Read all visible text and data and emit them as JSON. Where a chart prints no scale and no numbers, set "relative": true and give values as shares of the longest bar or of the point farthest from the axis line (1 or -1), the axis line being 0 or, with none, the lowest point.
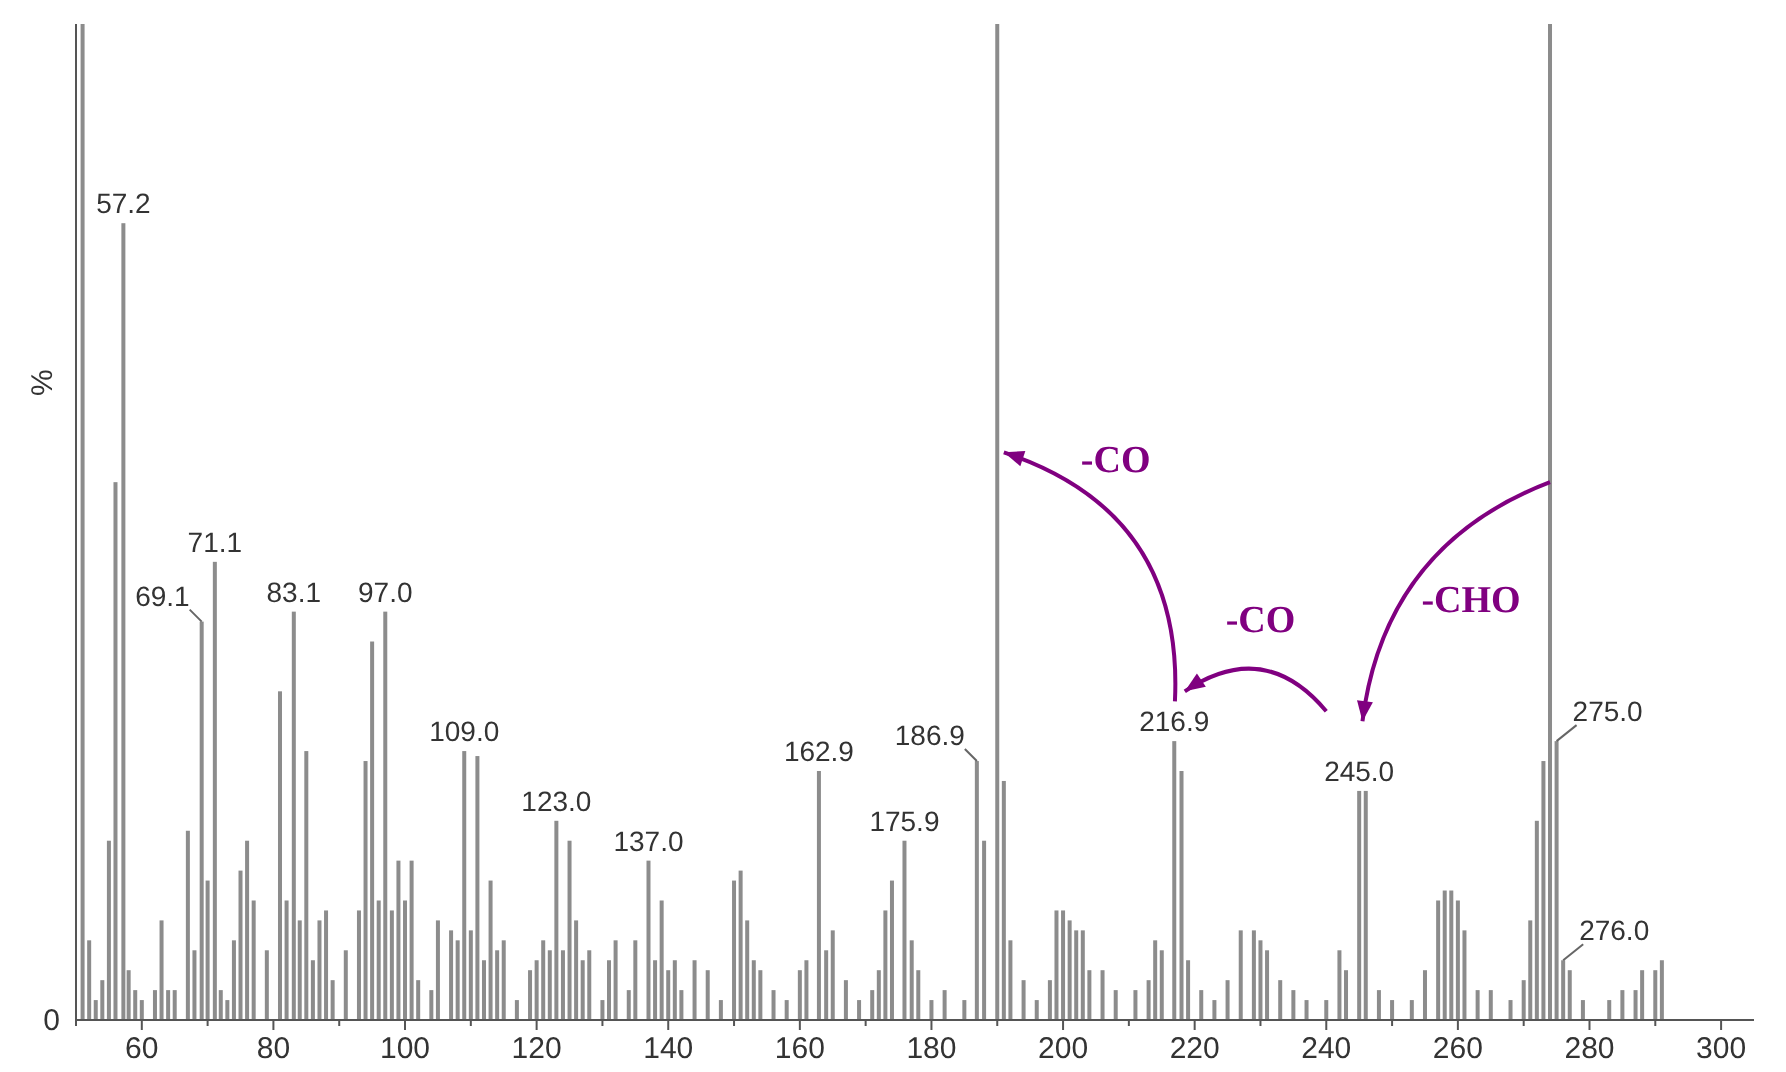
{
  "chart_data": {
    "type": "bar",
    "relative": true,
    "ylabel": "%",
    "color": "#8c8c8c",
    "xlim": [
      50,
      305
    ],
    "xticks": [
      {
        "value": 50,
        "label": null
      },
      60,
      {
        "value": 70,
        "label": null
      },
      80,
      {
        "value": 90,
        "label": null
      },
      100,
      {
        "value": 110,
        "label": null
      },
      120,
      {
        "value": 130,
        "label": null
      },
      140,
      {
        "value": 150,
        "label": null
      },
      160,
      {
        "value": 170,
        "label": null
      },
      180,
      {
        "value": 190,
        "label": null
      },
      200,
      {
        "value": 210,
        "label": null
      },
      220,
      {
        "value": 230,
        "label": null
      },
      240,
      {
        "value": 250,
        "label": null
      },
      260,
      {
        "value": 270,
        "label": null
      },
      280,
      {
        "value": 290,
        "label": null
      },
      300
    ],
    "x": [
      51,
      52,
      53,
      54,
      55,
      56,
      57.2,
      58,
      59,
      60,
      62,
      63,
      64,
      65,
      67,
      68,
      69.1,
      70,
      71.1,
      72,
      73,
      74,
      75,
      76,
      77,
      79,
      81,
      82,
      83.1,
      84,
      85,
      86,
      87,
      88,
      89,
      91,
      93,
      94,
      95,
      96,
      97.0,
      98,
      99,
      100,
      101,
      102,
      104,
      105,
      107,
      108,
      109.0,
      110,
      111,
      112,
      113,
      114,
      115,
      117,
      119,
      120,
      121,
      122,
      123.0,
      124,
      125,
      126,
      127,
      128,
      130,
      131,
      132,
      134,
      135,
      137.0,
      138,
      139,
      140,
      141,
      142,
      144,
      146,
      148,
      150,
      151,
      152,
      153,
      154,
      156,
      158,
      160,
      161,
      162.9,
      164,
      165,
      167,
      169,
      171,
      172,
      173,
      174,
      175.9,
      177,
      178,
      180,
      182,
      185,
      186.9,
      188,
      190,
      191,
      192,
      194,
      196,
      198,
      199,
      200,
      201,
      202,
      203,
      204,
      206,
      208,
      211,
      213,
      214,
      215,
      216.9,
      218,
      219,
      221,
      223,
      225,
      227,
      229,
      230,
      231,
      233,
      235,
      237,
      240,
      242,
      243,
      245.0,
      246,
      248,
      250,
      253,
      255,
      257,
      258,
      259,
      260,
      261,
      263,
      265,
      268,
      270,
      271,
      272,
      273,
      274,
      275.0,
      276.0,
      277,
      279,
      283,
      285,
      287,
      288,
      290,
      291
    ],
    "values": [
      1.0,
      0.08,
      0.02,
      0.04,
      0.18,
      0.54,
      0.8,
      0.05,
      0.03,
      0.02,
      0.03,
      0.1,
      0.03,
      0.03,
      0.19,
      0.07,
      0.4,
      0.14,
      0.46,
      0.03,
      0.02,
      0.08,
      0.15,
      0.18,
      0.12,
      0.07,
      0.33,
      0.12,
      0.41,
      0.1,
      0.27,
      0.06,
      0.1,
      0.11,
      0.04,
      0.07,
      0.11,
      0.26,
      0.38,
      0.12,
      0.41,
      0.11,
      0.16,
      0.12,
      0.16,
      0.04,
      0.03,
      0.1,
      0.09,
      0.08,
      0.27,
      0.09,
      0.265,
      0.06,
      0.14,
      0.07,
      0.08,
      0.02,
      0.05,
      0.06,
      0.08,
      0.07,
      0.2,
      0.07,
      0.18,
      0.1,
      0.06,
      0.07,
      0.02,
      0.06,
      0.08,
      0.03,
      0.08,
      0.16,
      0.06,
      0.12,
      0.05,
      0.06,
      0.03,
      0.06,
      0.05,
      0.02,
      0.14,
      0.15,
      0.1,
      0.06,
      0.05,
      0.03,
      0.02,
      0.05,
      0.06,
      0.25,
      0.07,
      0.09,
      0.04,
      0.02,
      0.03,
      0.05,
      0.11,
      0.14,
      0.18,
      0.08,
      0.05,
      0.02,
      0.03,
      0.02,
      0.26,
      0.18,
      1.0,
      0.24,
      0.08,
      0.04,
      0.02,
      0.04,
      0.11,
      0.11,
      0.1,
      0.09,
      0.09,
      0.05,
      0.05,
      0.03,
      0.03,
      0.04,
      0.08,
      0.07,
      0.28,
      0.25,
      0.06,
      0.03,
      0.02,
      0.04,
      0.09,
      0.09,
      0.08,
      0.07,
      0.04,
      0.03,
      0.02,
      0.02,
      0.07,
      0.05,
      0.23,
      0.23,
      0.03,
      0.02,
      0.02,
      0.05,
      0.12,
      0.13,
      0.13,
      0.12,
      0.09,
      0.03,
      0.03,
      0.02,
      0.04,
      0.1,
      0.2,
      0.26,
      1.0,
      0.28,
      0.06,
      0.05,
      0.02,
      0.02,
      0.03,
      0.03,
      0.05,
      0.05,
      0.06
    ],
    "annotations": [
      {
        "text": "0",
        "x": 50,
        "y": 0
      },
      {
        "text": "57.2",
        "x": 57.2,
        "y": 0.8
      },
      {
        "text": "69.1",
        "x": 69.1,
        "y": 0.4
      },
      {
        "text": "71.1",
        "x": 71.1,
        "y": 0.46
      },
      {
        "text": "83.1",
        "x": 83.1,
        "y": 0.41
      },
      {
        "text": "97.0",
        "x": 97.0,
        "y": 0.41
      },
      {
        "text": "109.0",
        "x": 109.0,
        "y": 0.27
      },
      {
        "text": "123.0",
        "x": 123.0,
        "y": 0.2
      },
      {
        "text": "137.0",
        "x": 137.0,
        "y": 0.16
      },
      {
        "text": "162.9",
        "x": 162.9,
        "y": 0.25
      },
      {
        "text": "175.9",
        "x": 175.9,
        "y": 0.18
      },
      {
        "text": "186.9",
        "x": 186.9,
        "y": 0.26
      },
      {
        "text": "216.9",
        "x": 216.9,
        "y": 0.28
      },
      {
        "text": "245.0",
        "x": 245.0,
        "y": 0.23
      },
      {
        "text": "275.0",
        "x": 275.0,
        "y": 0.28
      },
      {
        "text": "276.0",
        "x": 276.0,
        "y": 0.06
      },
      "-CO",
      "-CO",
      "-CHO"
    ]
  }
}
